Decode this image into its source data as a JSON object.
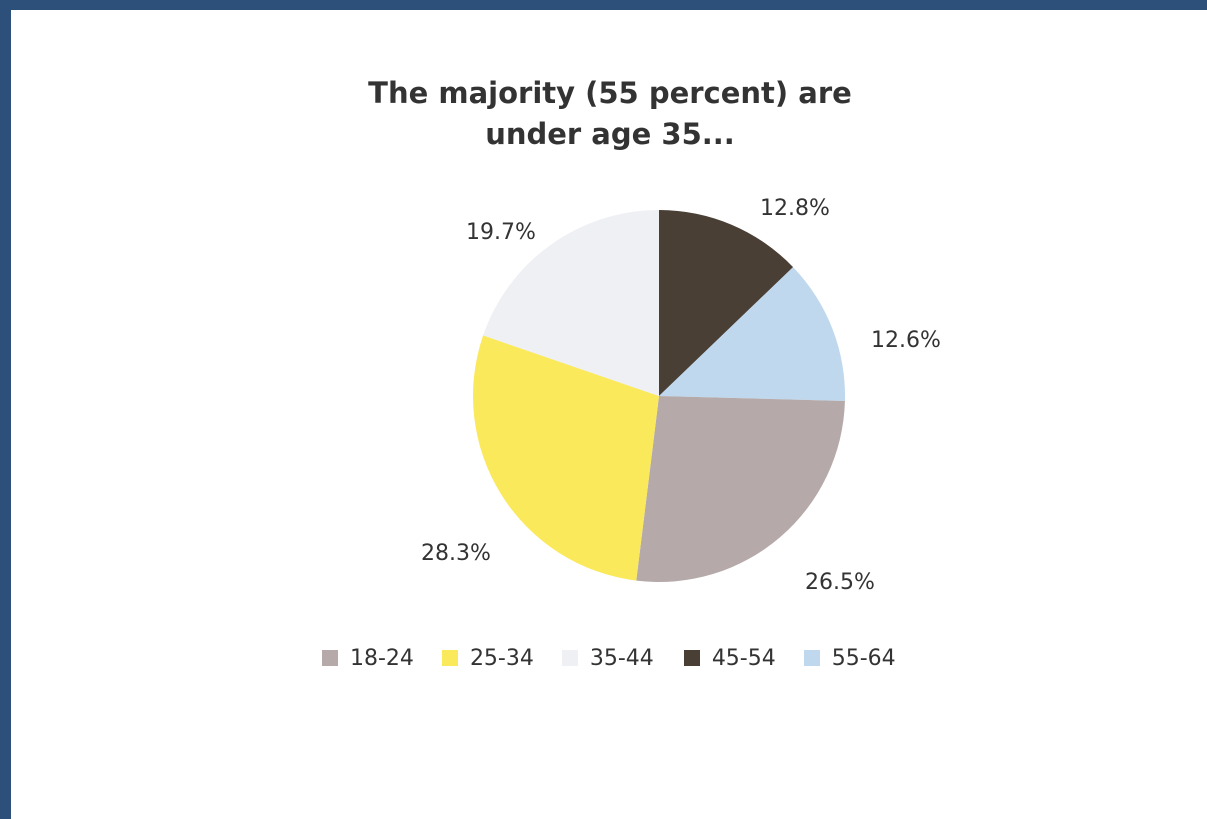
{
  "chart_data": {
    "type": "pie",
    "title": "The majority (55 percent) are under age 35...",
    "title_lines": [
      "The majority (55 percent) are",
      "under age 35..."
    ],
    "slices": [
      {
        "name": "45-54",
        "value": 12.8,
        "label": "12.8%",
        "color": "#4a3f35"
      },
      {
        "name": "55-64",
        "value": 12.6,
        "label": "12.6%",
        "color": "#bfd8ee"
      },
      {
        "name": "18-24",
        "value": 26.5,
        "label": "26.5%",
        "color": "#b5aaa9"
      },
      {
        "name": "25-34",
        "value": 28.3,
        "label": "28.3%",
        "color": "#fbe95c"
      },
      {
        "name": "35-44",
        "value": 19.7,
        "label": "19.7%",
        "color": "#eef0f3"
      }
    ],
    "legend": [
      {
        "label": "18-24",
        "color": "#b5aaa9"
      },
      {
        "label": "25-34",
        "color": "#fbe95c"
      },
      {
        "label": "35-44",
        "color": "#eef0f3"
      },
      {
        "label": "45-54",
        "color": "#4a3f35"
      },
      {
        "label": "55-64",
        "color": "#bfd8ee"
      }
    ],
    "legend_position": "bottom",
    "start": "12 o'clock",
    "direction": "clockwise"
  },
  "frame_color": "#2c5079"
}
